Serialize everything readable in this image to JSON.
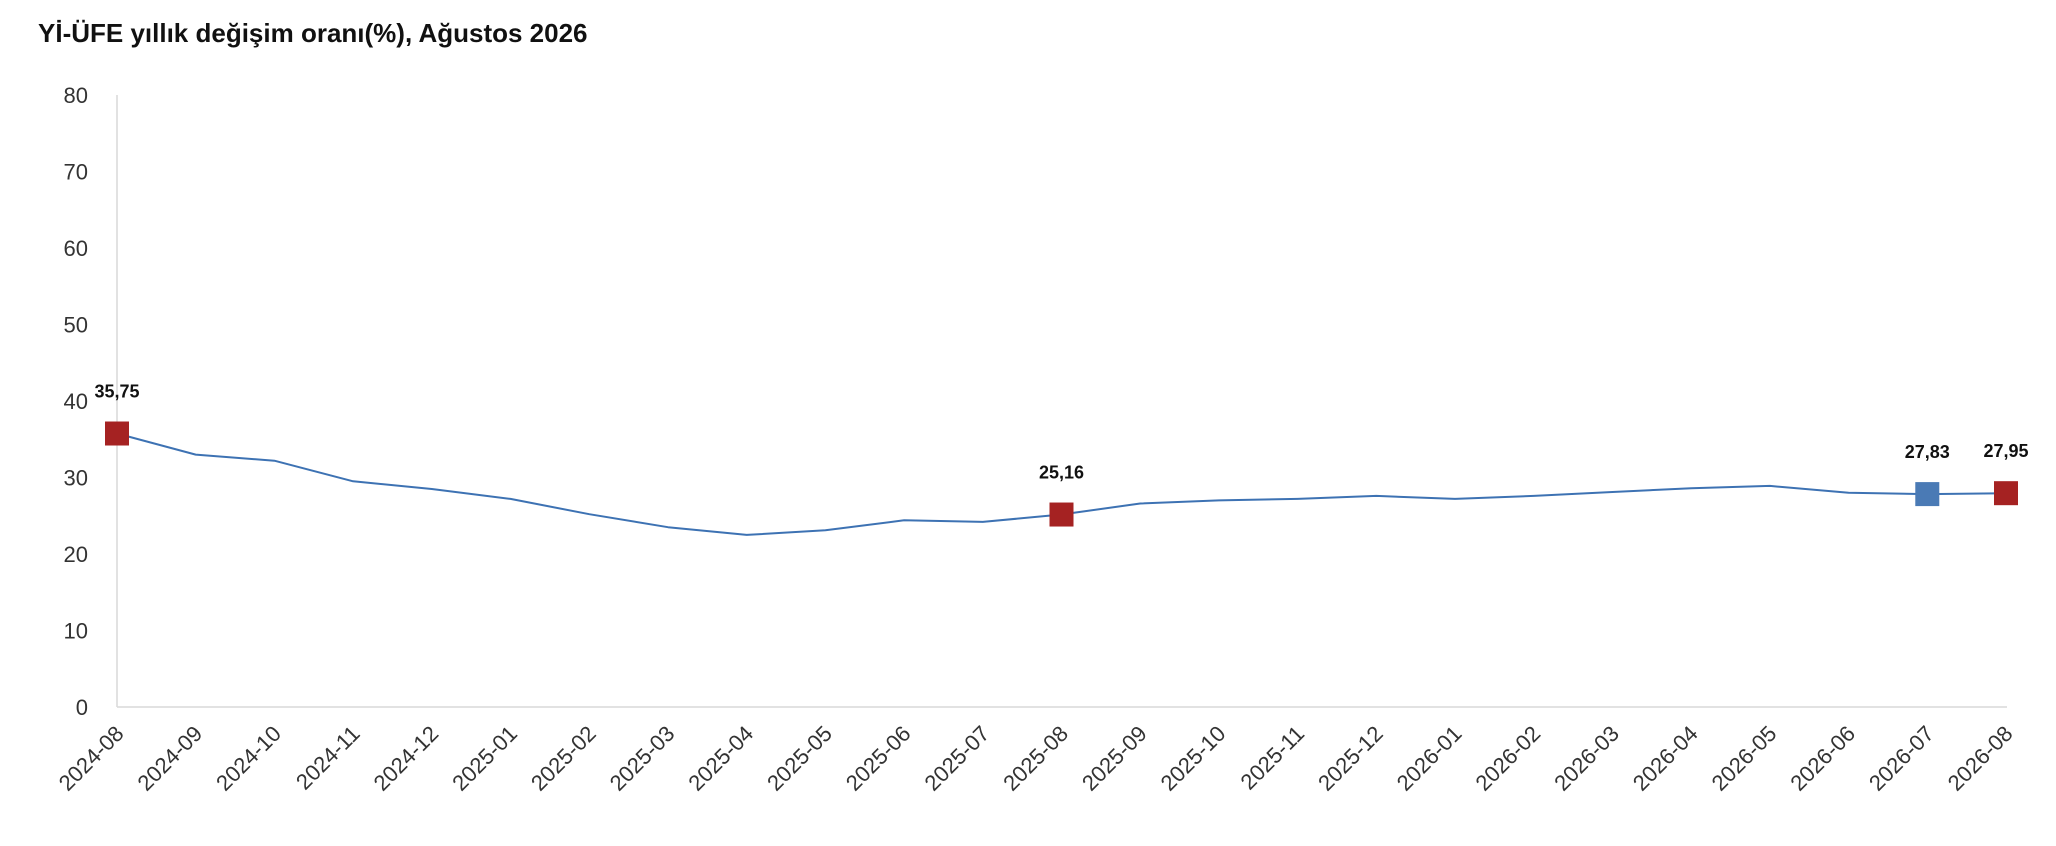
{
  "chart_data": {
    "type": "line",
    "title": "Yİ-ÜFE yıllık değişim oranı(%), Ağustos 2026",
    "xlabel": "",
    "ylabel": "",
    "ylim": [
      0,
      80
    ],
    "yticks": [
      "0",
      "10",
      "20",
      "30",
      "40",
      "50",
      "60",
      "70",
      "80"
    ],
    "categories": [
      "2024-08",
      "2024-09",
      "2024-10",
      "2024-11",
      "2024-12",
      "2025-01",
      "2025-02",
      "2025-03",
      "2025-04",
      "2025-05",
      "2025-06",
      "2025-07",
      "2025-08",
      "2025-09",
      "2025-10",
      "2025-11",
      "2025-12",
      "2026-01",
      "2026-02",
      "2026-03",
      "2026-04",
      "2026-05",
      "2026-06",
      "2026-07",
      "2026-08"
    ],
    "series": [
      {
        "values": [
          35.75,
          33.0,
          32.2,
          29.5,
          28.5,
          27.2,
          25.2,
          23.5,
          22.5,
          23.1,
          24.4,
          24.2,
          25.16,
          26.6,
          27.0,
          27.2,
          27.6,
          27.2,
          27.6,
          28.1,
          28.6,
          28.9,
          28.0,
          27.83,
          27.95
        ],
        "color": "#3d72b3"
      }
    ],
    "highlights": [
      {
        "index": 0,
        "label": "35,75",
        "color": "#a52222"
      },
      {
        "index": 12,
        "label": "25,16",
        "color": "#a52222"
      },
      {
        "index": 23,
        "label": "27,83",
        "color": "#4a7ab5"
      },
      {
        "index": 24,
        "label": "27,95",
        "color": "#a52222"
      }
    ],
    "grid": false,
    "legend": "none"
  }
}
